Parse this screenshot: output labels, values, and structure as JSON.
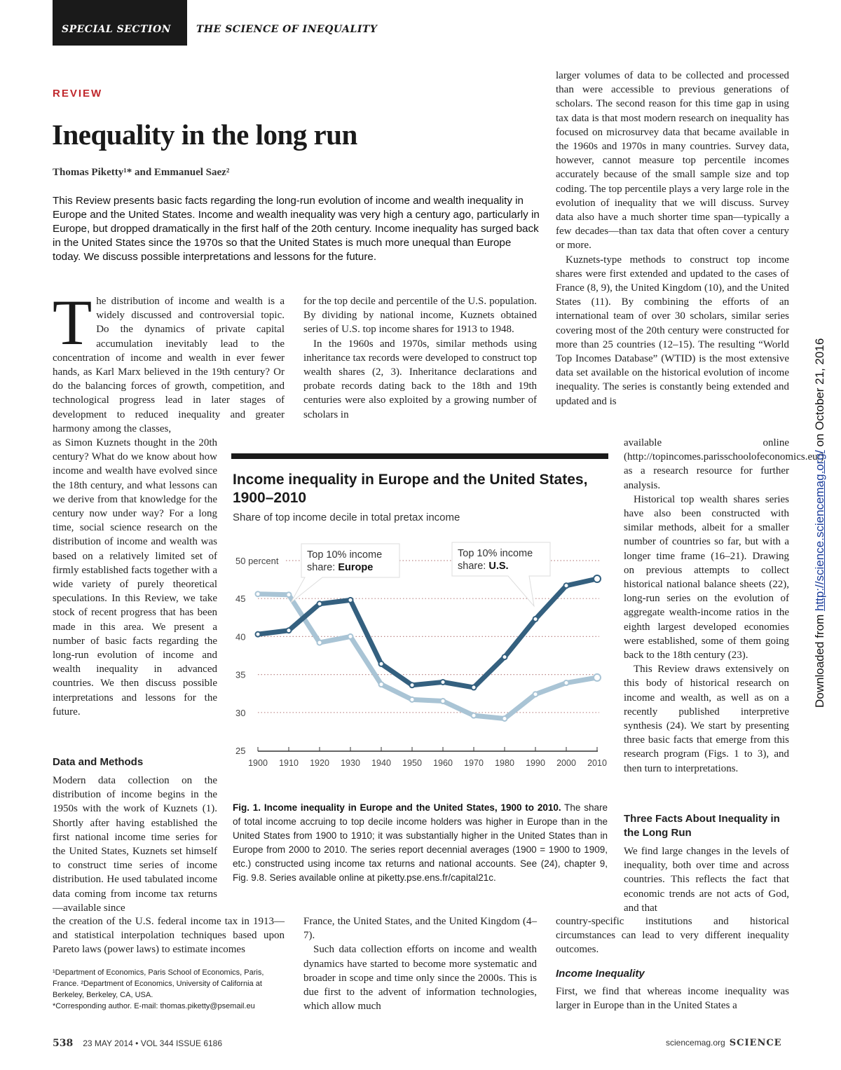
{
  "header": {
    "section": "SPECIAL SECTION",
    "title": "THE SCIENCE OF INEQUALITY"
  },
  "article": {
    "kicker": "REVIEW",
    "title": "Inequality in the long run",
    "authors": "Thomas Piketty¹* and Emmanuel Saez²",
    "abstract": "This Review presents basic facts regarding the long-run evolution of income and wealth inequality in Europe and the United States. Income and wealth inequality was very high a century ago, particularly in Europe, but dropped dramatically in the first half of the 20th century. Income inequality has surged back in the United States since the 1970s so that the United States is much more unequal than Europe today. We discuss possible interpretations and lessons for the future.",
    "dropcap": "T",
    "left_1": "he distribution of income and wealth is a widely discussed and controversial topic. Do the dynamics of private capital accumulation inevitably lead to the concentration of income and wealth in ever fewer hands, as Karl Marx believed in the 19th century? Or do the balancing forces of growth, competition, and technological progress lead in later stages of development to reduced inequality and greater harmony among the classes,",
    "left_2": "as Simon Kuznets thought in the 20th century? What do we know about how income and wealth have evolved since the 18th century, and what lessons can we derive from that knowledge for the century now under way? For a long time, social science research on the distribution of income and wealth was based on a relatively limited set of firmly established facts together with a wide variety of purely theoretical speculations. In this Review, we take stock of recent progress that has been made in this area. We present a number of basic facts regarding the long-run evolution of income and wealth inequality in advanced countries. We then discuss possible interpretations and lessons for the future.",
    "heading_data": "Data and Methods",
    "left_3": "Modern data collection on the distribution of income begins in the 1950s with the work of Kuznets (1). Shortly after having established the first national income time series for the United States, Kuznets set himself to construct time series of income distribution. He used tabulated income data coming from income tax returns—available since",
    "left_4": "the creation of the U.S. federal income tax in 1913—and statistical interpolation techniques based upon Pareto laws (power laws) to estimate incomes",
    "mid_1a": "for the top decile and percentile of the U.S. population. By dividing by national income, Kuznets obtained series of U.S. top income shares for 1913 to 1948.",
    "mid_1b": "In the 1960s and 1970s, similar methods using inheritance tax records were developed to construct top wealth shares (2, 3). Inheritance declarations and probate records dating back to the 18th and 19th centuries were also exploited by a growing number of scholars in",
    "mid_2a": "France, the United States, and the United Kingdom (4–7).",
    "mid_2b": "Such data collection efforts on income and wealth dynamics have started to become more systematic and broader in scope and time only since the 2000s. This is due first to the advent of information technologies, which allow much",
    "right_1a": "larger volumes of data to be collected and processed than were accessible to previous generations of scholars. The second reason for this time gap in using tax data is that most modern research on inequality has focused on microsurvey data that became available in the 1960s and 1970s in many countries. Survey data, however, cannot measure top percentile incomes accurately because of the small sample size and top coding. The top percentile plays a very large role in the evolution of inequality that we will discuss. Survey data also have a much shorter time span—typically a few decades—than tax data that often cover a century or more.",
    "right_1b": "Kuznets-type methods to construct top income shares were first extended and updated to the cases of France (8, 9), the United Kingdom (10), and the United States (11). By combining the efforts of an international team of over 30 scholars, similar series covering most of the 20th century were constructed for more than 25 countries (12–15). The resulting “World Top Incomes Database” (WTID) is the most extensive data set available on the historical evolution of income inequality. The series is constantly being extended and updated and is",
    "right_2a": "available online (http://topincomes.parisschoolofeconomics.eu/) as a research resource for further analysis.",
    "right_2b": "Historical top wealth shares series have also been constructed with similar methods, albeit for a smaller number of countries so far, but with a longer time frame (16–21). Drawing on previous attempts to collect historical national balance sheets (22), long-run series on the evolution of aggregate wealth-income ratios in the eighth largest developed economies were established, some of them going back to the 18th century (23).",
    "right_2c": "This Review draws extensively on this body of historical research on income and wealth, as well as on a recently published interpretive synthesis (24). We start by presenting three basic facts that emerge from this research program (Figs. 1 to 3), and then turn to interpretations.",
    "heading_facts": "Three Facts About Inequality in the Long Run",
    "right_3a": "We find large changes in the levels of inequality, both over time and across countries. This reflects the fact that economic trends are not acts of God, and that",
    "right_3b": "country-specific institutions and historical circumstances can lead to very different inequality outcomes.",
    "heading_income": "Income Inequality",
    "right_4": "First, we find that whereas income inequality was larger in Europe than in the United States a",
    "footnote_1": "¹Department of Economics, Paris School of Economics, Paris, France. ²Department of Economics, University of California at Berkeley, Berkeley, CA, USA.",
    "footnote_2": "*Corresponding author. E-mail: thomas.piketty@psemail.eu"
  },
  "figure": {
    "caption_label": "Fig. 1. Income inequality in Europe and the United States, 1900 to 2010.",
    "caption_text": " The share of total income accruing to top decile income holders was higher in Europe than in the United States from 1900 to 1910; it was substantially higher in the United States than in Europe from 2000 to 2010. The series report decennial averages (1900 = 1900 to 1909, etc.) constructed using income tax returns and national accounts. See (24), chapter 9, Fig. 9.8. Series available online at piketty.pse.ens.fr/capital21c."
  },
  "chart_data": {
    "type": "line",
    "title": "Income inequality in Europe and the United States, 1900–2010",
    "subtitle": "Share of top income decile in total pretax income",
    "x": [
      1900,
      1910,
      1920,
      1930,
      1940,
      1950,
      1960,
      1970,
      1980,
      1990,
      2000,
      2010
    ],
    "x_tick_labels": [
      "1900",
      "1910",
      "1920",
      "1930",
      "1940",
      "1950",
      "1960",
      "1970",
      "1980",
      "1990",
      "2000",
      "2010"
    ],
    "y_tick_labels": [
      "25",
      "30",
      "35",
      "40",
      "45",
      "50 percent"
    ],
    "ylim": [
      25,
      50
    ],
    "grid": true,
    "series": [
      {
        "name": "Top 10% income share: U.S.",
        "label_prefix": "Top 10% income share: ",
        "label_bold": "U.S.",
        "color": "#34607f",
        "values": [
          40.3,
          40.8,
          44.3,
          44.8,
          36.4,
          33.6,
          34.0,
          33.3,
          37.3,
          42.3,
          46.7,
          47.6
        ]
      },
      {
        "name": "Top 10% income share: Europe",
        "label_prefix": "Top 10% income share: ",
        "label_bold": "Europe",
        "color": "#a9c4d5",
        "values": [
          45.6,
          45.5,
          39.2,
          40.0,
          33.7,
          31.7,
          31.5,
          29.6,
          29.2,
          32.4,
          33.9,
          34.6
        ]
      }
    ]
  },
  "sidebar_note": {
    "prefix": "Downloaded from ",
    "link": "http://science.sciencemag.org/",
    "suffix": " on October 21, 2016"
  },
  "footer": {
    "page": "538",
    "issue": "23 MAY 2014 • VOL 344 ISSUE 6186",
    "site": "sciencemag.org",
    "journal": "SCIENCE"
  }
}
